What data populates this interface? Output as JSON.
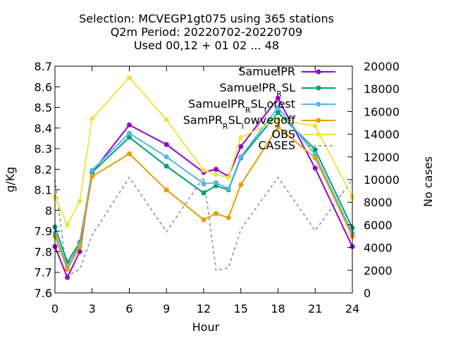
{
  "chart_data": {
    "type": "line",
    "title_lines": [
      "Selection: MCVEGP1gt075 using   365 stations",
      "Q2m   Period: 20220702-20220709",
      "Used  00,12  + 01 02 ... 48"
    ],
    "xlabel": "Hour",
    "ylabel": "g/Kg",
    "y2label": "No cases",
    "xlim": [
      0,
      24
    ],
    "ylim": [
      7.6,
      8.7
    ],
    "y2lim": [
      0,
      20000
    ],
    "x_ticks": [
      0,
      3,
      6,
      9,
      12,
      15,
      18,
      21,
      24
    ],
    "y_ticks": [
      7.6,
      7.7,
      7.8,
      7.9,
      8,
      8.1,
      8.2,
      8.3,
      8.4,
      8.5,
      8.6,
      8.7
    ],
    "y_tick_labels": [
      "7.6",
      "7.7",
      "7.8",
      "7.9",
      "8",
      "8.1",
      "8.2",
      "8.3",
      "8.4",
      "8.5",
      "8.6",
      "8.7"
    ],
    "y2_ticks": [
      0,
      2000,
      4000,
      6000,
      8000,
      10000,
      12000,
      14000,
      16000,
      18000,
      20000
    ],
    "x": [
      0,
      1,
      2,
      3,
      6,
      9,
      12,
      13,
      14,
      15,
      18,
      21,
      24
    ],
    "legend_position": "top-right",
    "grid": false,
    "series": [
      {
        "name": "SamuelPR",
        "legend_parts": [
          [
            "SamuelPR",
            ""
          ]
        ],
        "color": "#9400d3",
        "values": [
          7.825,
          7.675,
          7.8,
          8.185,
          8.415,
          8.32,
          8.185,
          8.2,
          8.165,
          8.31,
          8.545,
          8.205,
          7.825
        ]
      },
      {
        "name": "SamuelPR_RSL",
        "legend_parts": [
          [
            "SamuelPR",
            ""
          ],
          [
            "R",
            "sub"
          ],
          [
            "SL",
            ""
          ]
        ],
        "color": "#009e73",
        "values": [
          7.92,
          7.75,
          7.845,
          8.185,
          8.355,
          8.215,
          8.085,
          8.12,
          8.1,
          8.255,
          8.475,
          8.295,
          7.915
        ]
      },
      {
        "name": "SamuelPR_RSL_forest",
        "legend_parts": [
          [
            "SamuelPR",
            ""
          ],
          [
            "R",
            "sub"
          ],
          [
            "SL",
            ""
          ],
          [
            "f",
            "sub"
          ],
          [
            "orest",
            ""
          ]
        ],
        "color": "#56b4e9",
        "values": [
          7.89,
          7.73,
          7.835,
          8.195,
          8.375,
          8.26,
          8.13,
          8.135,
          8.105,
          8.26,
          8.5,
          8.27,
          7.89
        ]
      },
      {
        "name": "SamPR_RSL_lowvegoff",
        "legend_parts": [
          [
            "SamPR",
            ""
          ],
          [
            "R",
            "sub"
          ],
          [
            "SL",
            ""
          ],
          [
            "l",
            "sub"
          ],
          [
            "owvegoff",
            ""
          ]
        ],
        "color": "#e69f00",
        "values": [
          7.875,
          7.715,
          7.825,
          8.165,
          8.275,
          8.1,
          7.955,
          7.985,
          7.965,
          8.125,
          8.405,
          8.255,
          7.875
        ]
      },
      {
        "name": "OBS",
        "legend_parts": [
          [
            "OBS",
            ""
          ]
        ],
        "color": "#f0e442",
        "values": [
          8.065,
          7.93,
          8.045,
          8.445,
          8.645,
          8.44,
          8.195,
          8.175,
          8.16,
          8.355,
          8.44,
          8.41,
          8.065
        ]
      }
    ],
    "cases_series": {
      "name": "CASES",
      "color": "#888888",
      "axis": "y2",
      "values": [
        10000,
        1500,
        2100,
        5100,
        10200,
        5400,
        10200,
        2000,
        2200,
        5600,
        10200,
        5500,
        10000
      ]
    }
  }
}
